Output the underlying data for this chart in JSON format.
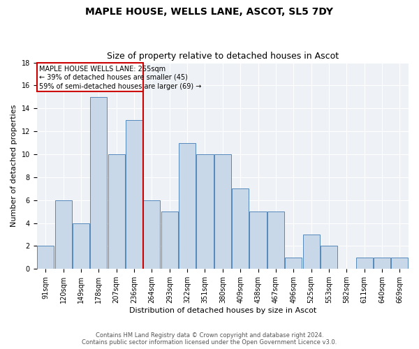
{
  "title": "MAPLE HOUSE, WELLS LANE, ASCOT, SL5 7DY",
  "subtitle": "Size of property relative to detached houses in Ascot",
  "xlabel": "Distribution of detached houses by size in Ascot",
  "ylabel": "Number of detached properties",
  "categories": [
    "91sqm",
    "120sqm",
    "149sqm",
    "178sqm",
    "207sqm",
    "236sqm",
    "264sqm",
    "293sqm",
    "322sqm",
    "351sqm",
    "380sqm",
    "409sqm",
    "438sqm",
    "467sqm",
    "496sqm",
    "525sqm",
    "553sqm",
    "582sqm",
    "611sqm",
    "640sqm",
    "669sqm"
  ],
  "values": [
    2,
    6,
    4,
    15,
    10,
    13,
    6,
    5,
    11,
    10,
    10,
    7,
    5,
    5,
    1,
    3,
    2,
    0,
    1,
    1,
    1
  ],
  "bar_color": "#c8d8e8",
  "bar_edge_color": "#5588bb",
  "annotation_text_line1": "MAPLE HOUSE WELLS LANE: 255sqm",
  "annotation_text_line2": "← 39% of detached houses are smaller (45)",
  "annotation_text_line3": "59% of semi-detached houses are larger (69) →",
  "annotation_box_color": "#cc0000",
  "ylim": [
    0,
    18
  ],
  "yticks": [
    0,
    2,
    4,
    6,
    8,
    10,
    12,
    14,
    16,
    18
  ],
  "footer_line1": "Contains HM Land Registry data © Crown copyright and database right 2024.",
  "footer_line2": "Contains public sector information licensed under the Open Government Licence v3.0.",
  "bg_color": "#eef2f6",
  "grid_color": "#ffffff",
  "title_fontsize": 10,
  "subtitle_fontsize": 9,
  "axis_label_fontsize": 8,
  "tick_fontsize": 7,
  "footer_fontsize": 6
}
